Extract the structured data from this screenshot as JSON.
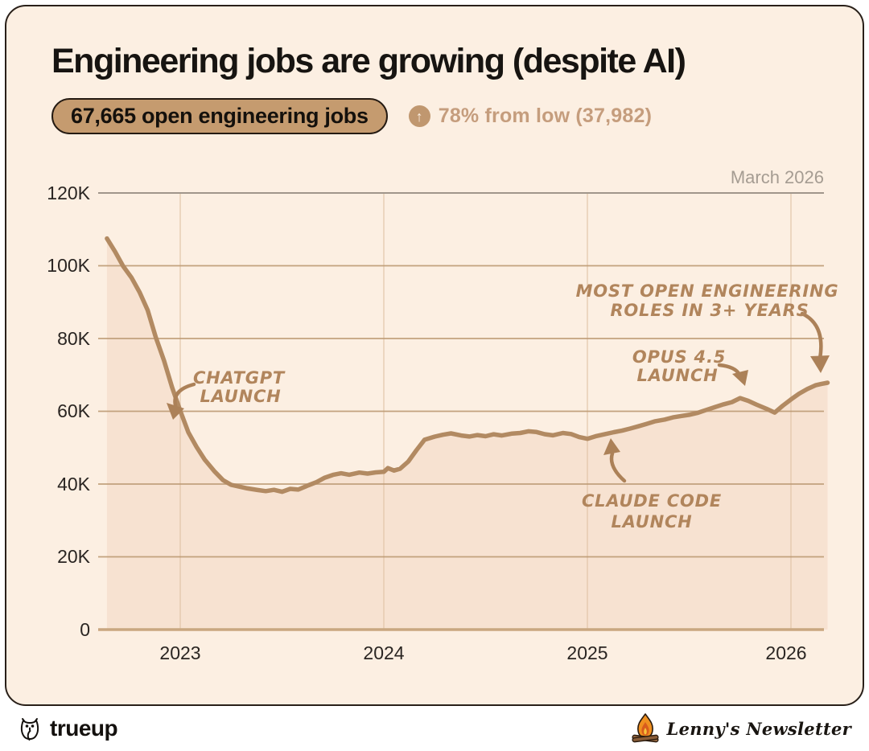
{
  "header": {
    "badge": "67,665 open engineering jobs",
    "delta_arrow": "up-arrow",
    "delta_text": "78% from low (37,982)"
  },
  "chart_data": {
    "type": "area",
    "title": "Engineering jobs are growing (despite AI)",
    "corner_label": "March 2026",
    "series_name": "Open engineering jobs",
    "line_color": "#b28a62",
    "area_color": "#f7e2d1",
    "grid": true,
    "ylim": [
      0,
      120000
    ],
    "x_range": [
      2022.64,
      2026.18
    ],
    "y_tick_labels": [
      "0",
      "20K",
      "40K",
      "60K",
      "80K",
      "100K",
      "120K"
    ],
    "x_tick_labels": [
      "2023",
      "2024",
      "2025",
      "2026"
    ],
    "key_stats": {
      "current": 67665,
      "low": 37982,
      "pct_from_low": 78
    },
    "annotations": [
      {
        "id": "chatgpt",
        "lines": [
          "CHATGPT",
          "LAUNCH"
        ]
      },
      {
        "id": "most-open",
        "lines": [
          "MOST OPEN ENGINEERING",
          "ROLES IN 3+ YEARS"
        ]
      },
      {
        "id": "opus",
        "lines": [
          "OPUS 4.5",
          "LAUNCH"
        ]
      },
      {
        "id": "claude-code",
        "lines": [
          "CLAUDE CODE",
          "LAUNCH"
        ]
      }
    ],
    "series": [
      {
        "name": "Open engineering jobs",
        "points": [
          [
            2022.64,
            107500
          ],
          [
            2022.68,
            104000
          ],
          [
            2022.72,
            100000
          ],
          [
            2022.76,
            97000
          ],
          [
            2022.8,
            93000
          ],
          [
            2022.84,
            88000
          ],
          [
            2022.88,
            80500
          ],
          [
            2022.92,
            74000
          ],
          [
            2022.96,
            66500
          ],
          [
            2023.0,
            60000
          ],
          [
            2023.04,
            54000
          ],
          [
            2023.08,
            50000
          ],
          [
            2023.12,
            46500
          ],
          [
            2023.17,
            43200
          ],
          [
            2023.21,
            41000
          ],
          [
            2023.25,
            39800
          ],
          [
            2023.29,
            39400
          ],
          [
            2023.33,
            39000
          ],
          [
            2023.38,
            38600
          ],
          [
            2023.42,
            38300
          ],
          [
            2023.46,
            38600
          ],
          [
            2023.5,
            38000
          ],
          [
            2023.54,
            38700
          ],
          [
            2023.58,
            38400
          ],
          [
            2023.63,
            39500
          ],
          [
            2023.67,
            40300
          ],
          [
            2023.71,
            41500
          ],
          [
            2023.75,
            42300
          ],
          [
            2023.79,
            42800
          ],
          [
            2023.83,
            42500
          ],
          [
            2023.88,
            43200
          ],
          [
            2023.92,
            43000
          ],
          [
            2023.96,
            43400
          ],
          [
            2024.0,
            43600
          ],
          [
            2024.02,
            44600
          ],
          [
            2024.05,
            43900
          ],
          [
            2024.08,
            44300
          ],
          [
            2024.12,
            46200
          ],
          [
            2024.16,
            49200
          ],
          [
            2024.2,
            52000
          ],
          [
            2024.25,
            52800
          ],
          [
            2024.29,
            53300
          ],
          [
            2024.33,
            53700
          ],
          [
            2024.38,
            53200
          ],
          [
            2024.42,
            53000
          ],
          [
            2024.46,
            53500
          ],
          [
            2024.5,
            53300
          ],
          [
            2024.54,
            53900
          ],
          [
            2024.58,
            53600
          ],
          [
            2024.63,
            54100
          ],
          [
            2024.67,
            54200
          ],
          [
            2024.71,
            54600
          ],
          [
            2024.75,
            54300
          ],
          [
            2024.79,
            53600
          ],
          [
            2024.83,
            53200
          ],
          [
            2024.88,
            53800
          ],
          [
            2024.92,
            53500
          ],
          [
            2024.96,
            52700
          ],
          [
            2025.0,
            52300
          ],
          [
            2025.04,
            53100
          ],
          [
            2025.08,
            53700
          ],
          [
            2025.13,
            54400
          ],
          [
            2025.17,
            54900
          ],
          [
            2025.21,
            55500
          ],
          [
            2025.25,
            56100
          ],
          [
            2025.29,
            56700
          ],
          [
            2025.33,
            57300
          ],
          [
            2025.38,
            57700
          ],
          [
            2025.42,
            58200
          ],
          [
            2025.46,
            58500
          ],
          [
            2025.5,
            58800
          ],
          [
            2025.54,
            59300
          ],
          [
            2025.58,
            60100
          ],
          [
            2025.63,
            61100
          ],
          [
            2025.67,
            61900
          ],
          [
            2025.71,
            62600
          ],
          [
            2025.75,
            63800
          ],
          [
            2025.79,
            63100
          ],
          [
            2025.83,
            62100
          ],
          [
            2025.88,
            60900
          ],
          [
            2025.92,
            59800
          ],
          [
            2025.96,
            61600
          ],
          [
            2026.0,
            63200
          ],
          [
            2026.04,
            64700
          ],
          [
            2026.08,
            65900
          ],
          [
            2026.12,
            66900
          ],
          [
            2026.15,
            67300
          ],
          [
            2026.18,
            67665
          ]
        ]
      }
    ]
  },
  "footer": {
    "brand_left": "trueup",
    "brand_right": "Lenny's Newsletter"
  }
}
